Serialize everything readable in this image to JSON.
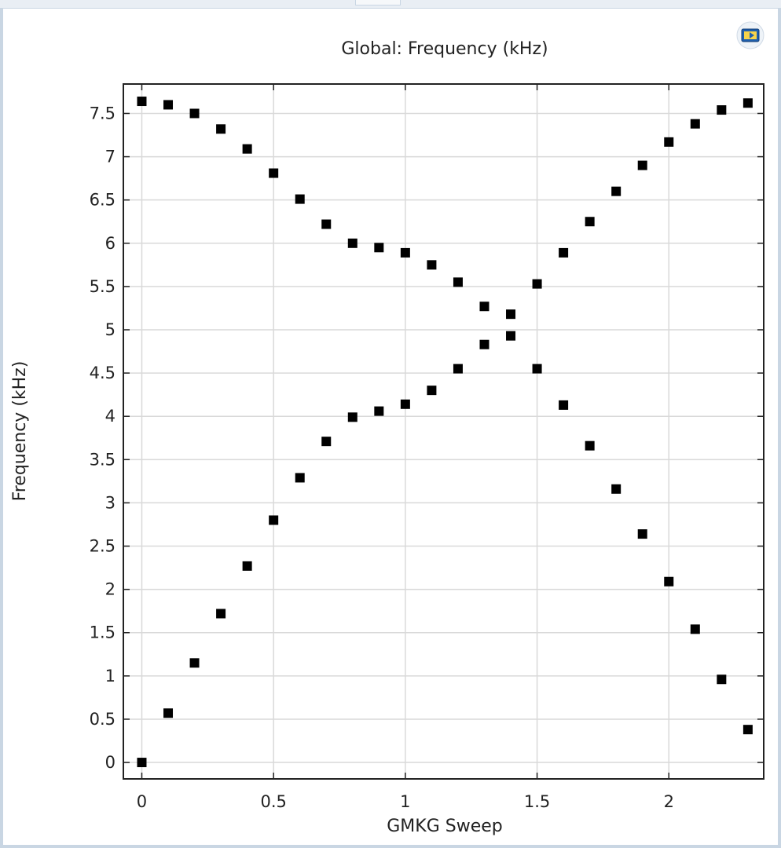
{
  "chart_data": {
    "type": "scatter",
    "title": "Global: Frequency (kHz)",
    "xlabel": "GMKG Sweep",
    "ylabel": "Frequency (kHz)",
    "xlim": [
      -0.07,
      2.36
    ],
    "ylim": [
      -0.19,
      7.84
    ],
    "xticks": [
      0,
      0.5,
      1,
      1.5,
      2
    ],
    "xtick_labels": [
      "0",
      "0.5",
      "1",
      "1.5",
      "2"
    ],
    "yticks": [
      0,
      0.5,
      1,
      1.5,
      2,
      2.5,
      3,
      3.5,
      4,
      4.5,
      5,
      5.5,
      6,
      6.5,
      7,
      7.5
    ],
    "ytick_labels": [
      "0",
      "0.5",
      "1",
      "1.5",
      "2",
      "2.5",
      "3",
      "3.5",
      "4",
      "4.5",
      "5",
      "5.5",
      "6",
      "6.5",
      "7",
      "7.5"
    ],
    "grid": true,
    "marker": "square",
    "marker_color": "#000000",
    "x": [
      0,
      0.1,
      0.2,
      0.3,
      0.4,
      0.5,
      0.6,
      0.7,
      0.8,
      0.9,
      1.0,
      1.1,
      1.2,
      1.3,
      1.4,
      1.5,
      1.6,
      1.7,
      1.8,
      1.9,
      2.0,
      2.1,
      2.2,
      2.3
    ],
    "series": [
      {
        "values": [
          0.0,
          0.57,
          1.15,
          1.72,
          2.27,
          2.8,
          3.29,
          3.71,
          3.99,
          4.06,
          4.14,
          4.3,
          4.55,
          4.83,
          4.93,
          4.55,
          4.13,
          3.66,
          3.16,
          2.64,
          2.09,
          1.54,
          0.96,
          0.38
        ]
      },
      {
        "values": [
          7.64,
          7.6,
          7.5,
          7.32,
          7.09,
          6.81,
          6.51,
          6.22,
          6.0,
          5.95,
          5.89,
          5.75,
          5.55,
          5.27,
          5.18,
          5.53,
          5.89,
          6.25,
          6.6,
          6.9,
          7.17,
          7.38,
          7.54,
          7.62
        ]
      }
    ]
  },
  "toolbar": {
    "export_icon": "image-export-icon"
  }
}
